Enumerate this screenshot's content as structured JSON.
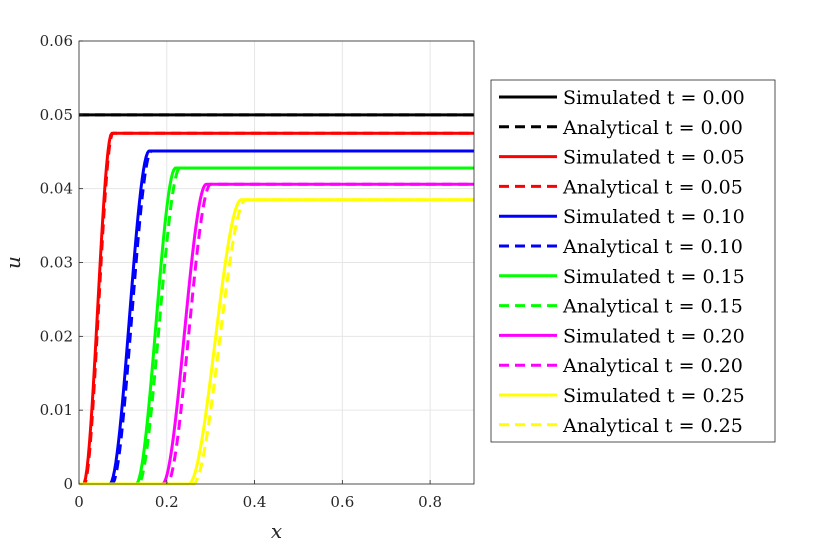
{
  "chart_data": {
    "type": "line",
    "xlabel": "x",
    "ylabel": "u",
    "xlim": [
      0,
      0.9
    ],
    "ylim": [
      0,
      0.06
    ],
    "xticks": [
      0,
      0.2,
      0.4,
      0.6,
      0.8
    ],
    "xtick_labels": [
      "0",
      "0.2",
      "0.4",
      "0.6",
      "0.8"
    ],
    "yticks": [
      0,
      0.01,
      0.02,
      0.03,
      0.04,
      0.05,
      0.06
    ],
    "ytick_labels": [
      "0",
      "0.01",
      "0.02",
      "0.03",
      "0.04",
      "0.05",
      "0.06"
    ],
    "grid": true,
    "legend_position": "right-outside",
    "series": [
      {
        "name": "Simulated t = 0.00",
        "t": 0.0,
        "color": "#000000",
        "style": "solid",
        "plateau": 0.05,
        "front_start": 0.0,
        "front_end": 0.0
      },
      {
        "name": "Analytical t = 0.00",
        "t": 0.0,
        "color": "#000000",
        "style": "dashed",
        "plateau": 0.05,
        "front_start": 0.0,
        "front_end": 0.0
      },
      {
        "name": "Simulated t = 0.05",
        "t": 0.05,
        "color": "#ff0000",
        "style": "solid",
        "plateau": 0.0475,
        "front_start": 0.01,
        "front_end": 0.075
      },
      {
        "name": "Analytical t = 0.05",
        "t": 0.05,
        "color": "#ff0000",
        "style": "dashed",
        "plateau": 0.0475,
        "front_start": 0.012,
        "front_end": 0.077
      },
      {
        "name": "Simulated t = 0.10",
        "t": 0.1,
        "color": "#0000ff",
        "style": "solid",
        "plateau": 0.0451,
        "front_start": 0.07,
        "front_end": 0.16
      },
      {
        "name": "Analytical t = 0.10",
        "t": 0.1,
        "color": "#0000ff",
        "style": "dashed",
        "plateau": 0.0451,
        "front_start": 0.075,
        "front_end": 0.165
      },
      {
        "name": "Simulated t = 0.15",
        "t": 0.15,
        "color": "#00ff00",
        "style": "solid",
        "plateau": 0.0428,
        "front_start": 0.13,
        "front_end": 0.22
      },
      {
        "name": "Analytical t = 0.15",
        "t": 0.15,
        "color": "#00ff00",
        "style": "dashed",
        "plateau": 0.0428,
        "front_start": 0.135,
        "front_end": 0.23
      },
      {
        "name": "Simulated t = 0.20",
        "t": 0.2,
        "color": "#ff00ff",
        "style": "solid",
        "plateau": 0.0406,
        "front_start": 0.19,
        "front_end": 0.29
      },
      {
        "name": "Analytical t = 0.20",
        "t": 0.2,
        "color": "#ff00ff",
        "style": "dashed",
        "plateau": 0.0406,
        "front_start": 0.2,
        "front_end": 0.3
      },
      {
        "name": "Simulated t = 0.25",
        "t": 0.25,
        "color": "#ffff00",
        "style": "solid",
        "plateau": 0.0385,
        "front_start": 0.25,
        "front_end": 0.37
      },
      {
        "name": "Analytical t = 0.25",
        "t": 0.25,
        "color": "#ffff00",
        "style": "dashed",
        "plateau": 0.0385,
        "front_start": 0.26,
        "front_end": 0.38
      }
    ]
  }
}
